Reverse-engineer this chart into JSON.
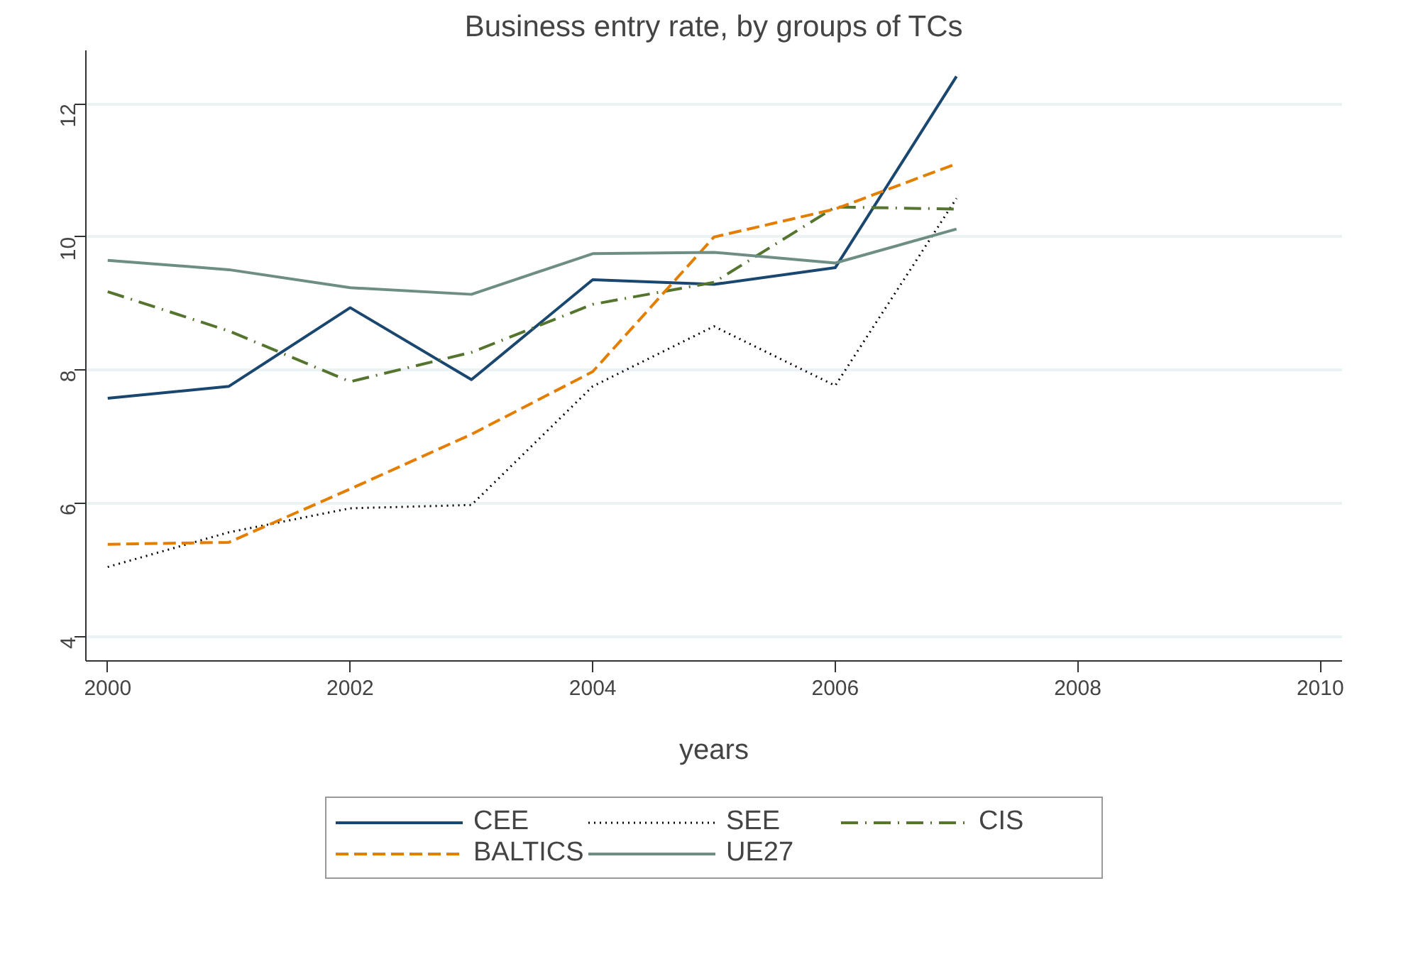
{
  "chart_data": {
    "type": "line",
    "title": "Business entry rate, by groups of TCs",
    "xlabel": "years",
    "x": [
      2000,
      2001,
      2002,
      2003,
      2004,
      2005,
      2006,
      2007
    ],
    "series": [
      {
        "name": "CEE",
        "color": "#1a476f",
        "line_style": "solid",
        "values": [
          7.58,
          7.76,
          8.94,
          7.86,
          9.36,
          9.29,
          9.54,
          12.41
        ]
      },
      {
        "name": "SEE",
        "color": "#000000",
        "line_style": "dotted",
        "values": [
          5.05,
          5.57,
          5.93,
          5.98,
          7.76,
          8.66,
          7.77,
          10.58
        ]
      },
      {
        "name": "CIS",
        "color": "#55752f",
        "line_style": "dashdot",
        "values": [
          9.18,
          8.59,
          7.83,
          8.27,
          8.99,
          9.32,
          10.45,
          10.42
        ]
      },
      {
        "name": "BALTICS",
        "color": "#e37e00",
        "line_style": "dashed",
        "values": [
          5.39,
          5.42,
          6.22,
          7.04,
          7.98,
          10.0,
          10.42,
          11.1
        ]
      },
      {
        "name": "UE27",
        "color": "#6e8e84",
        "line_style": "solid",
        "values": [
          9.65,
          9.51,
          9.24,
          9.14,
          9.75,
          9.77,
          9.61,
          10.12
        ]
      }
    ],
    "xlim": [
      1999.82,
      2010.18
    ],
    "xticks": [
      2000,
      2002,
      2004,
      2006,
      2008,
      2010
    ],
    "ylim": [
      3.64,
      12.8
    ],
    "yticks": [
      4,
      6,
      8,
      10,
      12
    ],
    "grid": "y",
    "legend": "bottom",
    "marker": "none"
  }
}
